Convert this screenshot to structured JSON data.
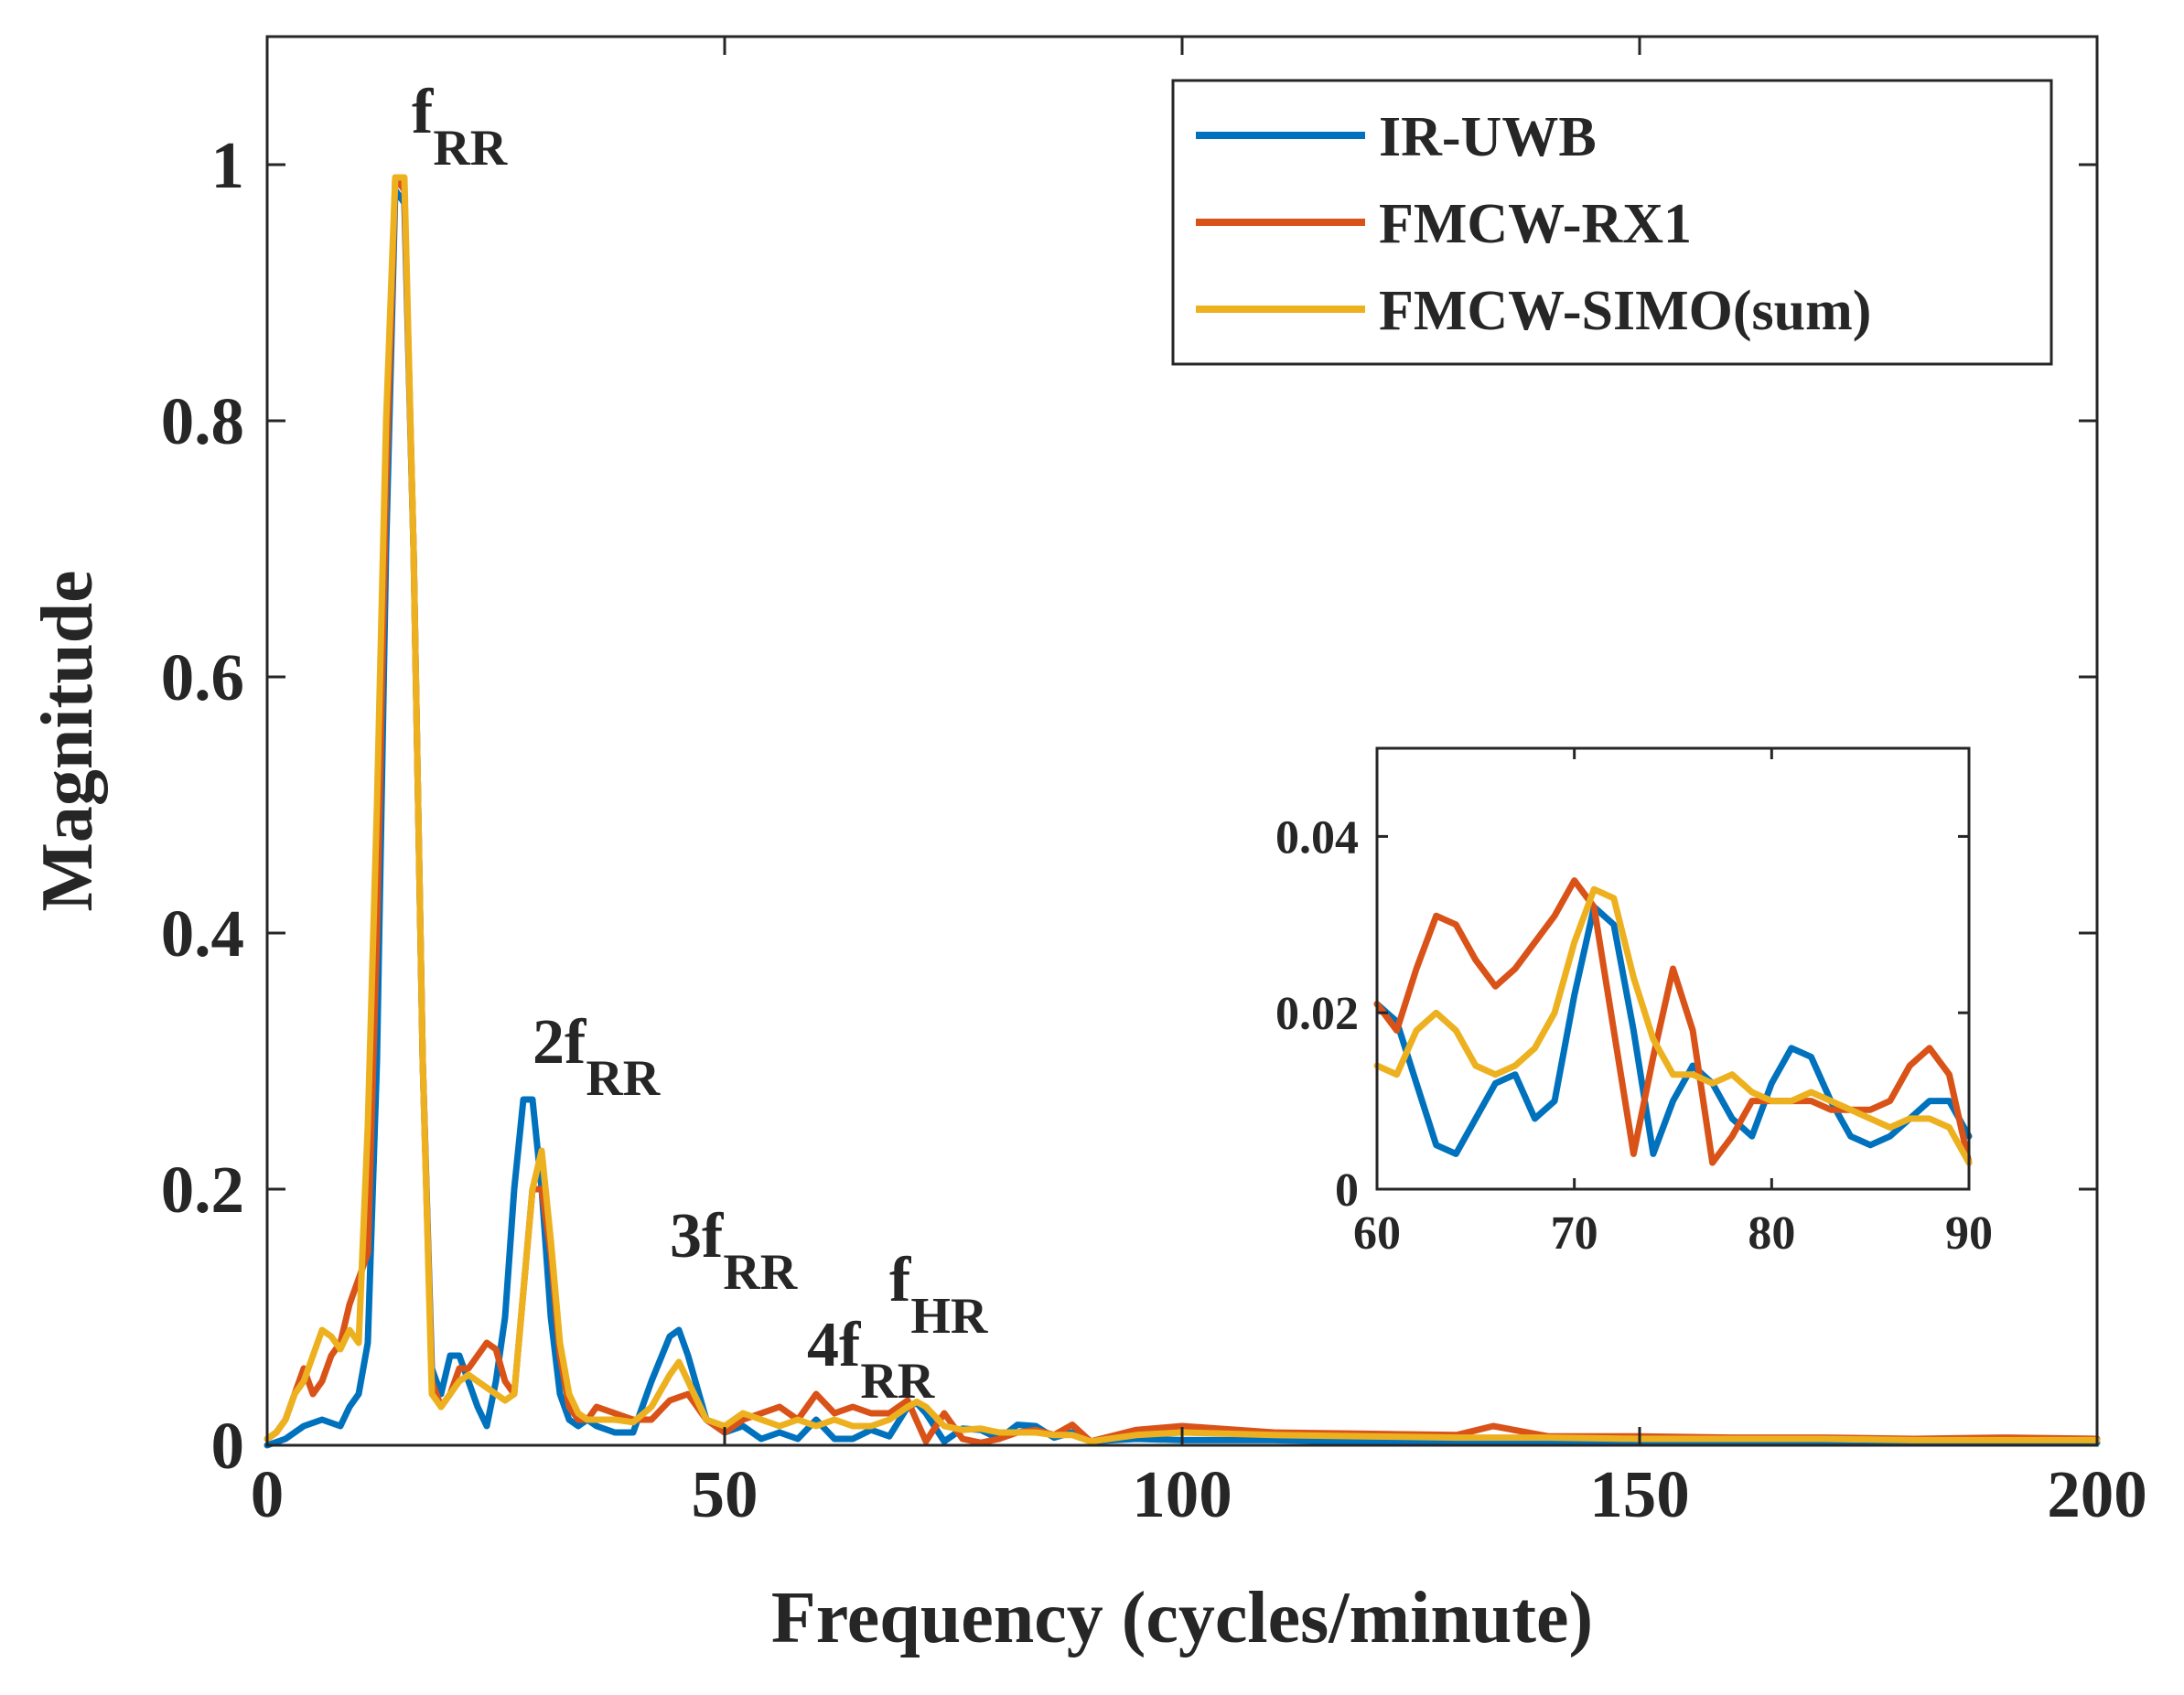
{
  "chart_data": [
    {
      "type": "line",
      "title": "",
      "xlabel": "Frequency (cycles/minute)",
      "ylabel": "Magnitude",
      "xlim": [
        0,
        200
      ],
      "ylim": [
        0,
        1.1
      ],
      "xticks": [
        0,
        50,
        100,
        150,
        200
      ],
      "xtick_labels": [
        "0",
        "50",
        "100",
        "150",
        "200"
      ],
      "yticks": [
        0,
        0.2,
        0.4,
        0.6,
        0.8,
        1
      ],
      "ytick_labels": [
        "0",
        "0.2",
        "0.4",
        "0.6",
        "0.8",
        "1"
      ],
      "legend_position": "top-right",
      "series": [
        {
          "name": "IR-UWB",
          "color": "#0072BD",
          "x": [
            0,
            2,
            4,
            6,
            8,
            9,
            10,
            11,
            12,
            13,
            14,
            15,
            16,
            17,
            18,
            19,
            20,
            21,
            22,
            23,
            24,
            25,
            26,
            27,
            28,
            29,
            30,
            31,
            32,
            33,
            34,
            35,
            36,
            38,
            40,
            42,
            44,
            45,
            46,
            48,
            50,
            52,
            54,
            56,
            58,
            60,
            62,
            64,
            66,
            68,
            70,
            71,
            72,
            74,
            76,
            78,
            80,
            82,
            84,
            86,
            88,
            90,
            95,
            100,
            110,
            120,
            130,
            140,
            150,
            160,
            170,
            180,
            190,
            200
          ],
          "y": [
            0,
            0.005,
            0.015,
            0.02,
            0.015,
            0.03,
            0.04,
            0.08,
            0.3,
            0.7,
            0.98,
            0.97,
            0.7,
            0.3,
            0.06,
            0.04,
            0.07,
            0.07,
            0.05,
            0.03,
            0.015,
            0.05,
            0.1,
            0.2,
            0.27,
            0.27,
            0.2,
            0.1,
            0.04,
            0.02,
            0.015,
            0.02,
            0.015,
            0.01,
            0.01,
            0.05,
            0.085,
            0.09,
            0.07,
            0.02,
            0.01,
            0.015,
            0.005,
            0.01,
            0.005,
            0.02,
            0.005,
            0.005,
            0.012,
            0.007,
            0.03,
            0.033,
            0.025,
            0.003,
            0.013,
            0.012,
            0.005,
            0.016,
            0.015,
            0.006,
            0.01,
            0.003,
            0.005,
            0.004,
            0.004,
            0.003,
            0.003,
            0.003,
            0.002,
            0.002,
            0.002,
            0.002,
            0.002,
            0.002
          ]
        },
        {
          "name": "FMCW-RX1",
          "color": "#D95319",
          "x": [
            0,
            1,
            2,
            3,
            4,
            5,
            6,
            7,
            8,
            9,
            10,
            11,
            12,
            13,
            14,
            15,
            16,
            17,
            18,
            19,
            20,
            21,
            22,
            23,
            24,
            25,
            26,
            27,
            28,
            29,
            30,
            31,
            32,
            33,
            34,
            35,
            36,
            38,
            40,
            42,
            44,
            46,
            48,
            50,
            52,
            54,
            56,
            58,
            60,
            62,
            64,
            66,
            68,
            70,
            72,
            74,
            76,
            78,
            80,
            82,
            84,
            86,
            88,
            90,
            95,
            100,
            110,
            120,
            130,
            134,
            140,
            150,
            160,
            170,
            180,
            190,
            200
          ],
          "y": [
            0.005,
            0.01,
            0.02,
            0.04,
            0.06,
            0.04,
            0.05,
            0.07,
            0.08,
            0.11,
            0.13,
            0.15,
            0.4,
            0.75,
            0.99,
            0.98,
            0.7,
            0.3,
            0.05,
            0.03,
            0.04,
            0.06,
            0.06,
            0.07,
            0.08,
            0.075,
            0.05,
            0.04,
            0.12,
            0.2,
            0.2,
            0.15,
            0.07,
            0.03,
            0.02,
            0.02,
            0.03,
            0.025,
            0.02,
            0.02,
            0.035,
            0.04,
            0.02,
            0.01,
            0.02,
            0.025,
            0.03,
            0.02,
            0.04,
            0.025,
            0.03,
            0.025,
            0.025,
            0.035,
            0.003,
            0.025,
            0.005,
            0.002,
            0.005,
            0.01,
            0.012,
            0.008,
            0.016,
            0.003,
            0.012,
            0.015,
            0.01,
            0.009,
            0.008,
            0.015,
            0.007,
            0.007,
            0.006,
            0.006,
            0.005,
            0.006,
            0.005
          ]
        },
        {
          "name": "FMCW-SIMO(sum)",
          "color": "#EDB120",
          "x": [
            0,
            1,
            2,
            3,
            4,
            5,
            6,
            7,
            8,
            9,
            10,
            11,
            12,
            13,
            14,
            15,
            16,
            17,
            18,
            19,
            20,
            21,
            22,
            23,
            24,
            25,
            26,
            27,
            28,
            29,
            30,
            31,
            32,
            33,
            34,
            35,
            36,
            38,
            40,
            42,
            44,
            45,
            46,
            48,
            50,
            52,
            54,
            56,
            58,
            60,
            62,
            64,
            66,
            68,
            70,
            71,
            72,
            74,
            76,
            78,
            80,
            82,
            84,
            86,
            88,
            90,
            95,
            100,
            110,
            120,
            130,
            140,
            150,
            160,
            170,
            180,
            190,
            200
          ],
          "y": [
            0.005,
            0.01,
            0.02,
            0.04,
            0.05,
            0.07,
            0.09,
            0.085,
            0.075,
            0.09,
            0.08,
            0.25,
            0.5,
            0.8,
            0.99,
            0.99,
            0.7,
            0.3,
            0.04,
            0.03,
            0.04,
            0.05,
            0.055,
            0.05,
            0.045,
            0.04,
            0.035,
            0.04,
            0.12,
            0.2,
            0.23,
            0.16,
            0.08,
            0.04,
            0.025,
            0.02,
            0.02,
            0.02,
            0.018,
            0.03,
            0.055,
            0.065,
            0.05,
            0.02,
            0.015,
            0.025,
            0.02,
            0.015,
            0.02,
            0.015,
            0.02,
            0.015,
            0.015,
            0.02,
            0.03,
            0.034,
            0.03,
            0.015,
            0.012,
            0.013,
            0.01,
            0.01,
            0.01,
            0.008,
            0.008,
            0.003,
            0.008,
            0.01,
            0.008,
            0.007,
            0.006,
            0.006,
            0.005,
            0.005,
            0.005,
            0.004,
            0.004,
            0.004
          ]
        }
      ],
      "annotations": [
        {
          "base": "f",
          "sub": "RR",
          "x": 15,
          "y": 1.0
        },
        {
          "base": "2f",
          "sub": "RR",
          "x": 30,
          "y": 0.27
        },
        {
          "base": "3f",
          "sub": "RR",
          "x": 45,
          "y": 0.14
        },
        {
          "base": "4f",
          "sub": "RR",
          "x": 60,
          "y": 0.055
        },
        {
          "base": "f",
          "sub": "HR",
          "x": 70,
          "y": 0.12
        }
      ]
    },
    {
      "type": "line",
      "title": "",
      "xlim": [
        60,
        90
      ],
      "ylim": [
        0,
        0.05
      ],
      "xticks": [
        60,
        70,
        80,
        90
      ],
      "xtick_labels": [
        "60",
        "70",
        "80",
        "90"
      ],
      "yticks": [
        0,
        0.02,
        0.04
      ],
      "ytick_labels": [
        "0",
        "0.02",
        "0.04"
      ],
      "series": [
        {
          "name": "IR-UWB",
          "color": "#0072BD",
          "x": [
            60,
            61,
            62,
            63,
            64,
            65,
            66,
            67,
            68,
            69,
            70,
            71,
            72,
            73,
            74,
            75,
            76,
            77,
            78,
            79,
            80,
            81,
            82,
            83,
            84,
            85,
            86,
            87,
            88,
            89,
            90
          ],
          "y": [
            0.021,
            0.019,
            0.012,
            0.005,
            0.004,
            0.008,
            0.012,
            0.013,
            0.008,
            0.01,
            0.022,
            0.032,
            0.03,
            0.018,
            0.004,
            0.01,
            0.014,
            0.012,
            0.008,
            0.006,
            0.012,
            0.016,
            0.015,
            0.01,
            0.006,
            0.005,
            0.006,
            0.008,
            0.01,
            0.01,
            0.006
          ]
        },
        {
          "name": "FMCW-RX1",
          "color": "#D95319",
          "x": [
            60,
            61,
            62,
            63,
            64,
            65,
            66,
            67,
            68,
            69,
            70,
            71,
            72,
            73,
            74,
            75,
            76,
            77,
            78,
            79,
            80,
            81,
            82,
            83,
            84,
            85,
            86,
            87,
            88,
            89,
            90
          ],
          "y": [
            0.021,
            0.018,
            0.025,
            0.031,
            0.03,
            0.026,
            0.023,
            0.025,
            0.028,
            0.031,
            0.035,
            0.032,
            0.018,
            0.004,
            0.015,
            0.025,
            0.018,
            0.003,
            0.006,
            0.01,
            0.01,
            0.01,
            0.01,
            0.009,
            0.009,
            0.009,
            0.01,
            0.014,
            0.016,
            0.013,
            0.003
          ]
        },
        {
          "name": "FMCW-SIMO(sum)",
          "color": "#EDB120",
          "x": [
            60,
            61,
            62,
            63,
            64,
            65,
            66,
            67,
            68,
            69,
            70,
            71,
            72,
            73,
            74,
            75,
            76,
            77,
            78,
            79,
            80,
            81,
            82,
            83,
            84,
            85,
            86,
            87,
            88,
            89,
            90
          ],
          "y": [
            0.014,
            0.013,
            0.018,
            0.02,
            0.018,
            0.014,
            0.013,
            0.014,
            0.016,
            0.02,
            0.028,
            0.034,
            0.033,
            0.024,
            0.017,
            0.013,
            0.013,
            0.012,
            0.013,
            0.011,
            0.01,
            0.01,
            0.011,
            0.01,
            0.009,
            0.008,
            0.007,
            0.008,
            0.008,
            0.007,
            0.003
          ]
        }
      ]
    }
  ]
}
